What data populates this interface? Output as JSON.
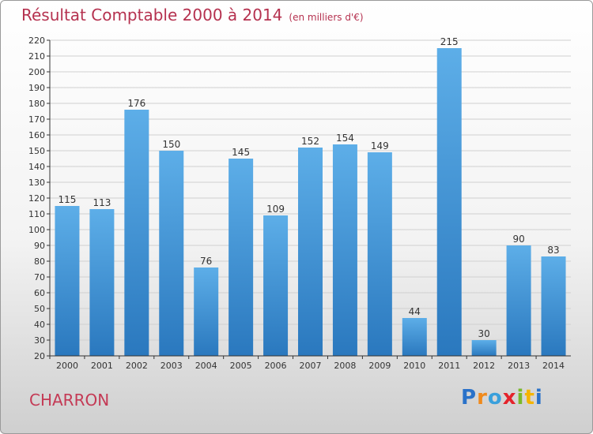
{
  "title": "Résultat Comptable 2000 à 2014",
  "subtitle": "(en milliers d'€)",
  "city": "CHARRON",
  "logo": {
    "letters": [
      "P",
      "r",
      "o",
      "x",
      "i",
      "t",
      "i"
    ],
    "colors": [
      "#2a72c9",
      "#f08a1c",
      "#3aa0dc",
      "#e4232b",
      "#7ab82a",
      "#f5b400",
      "#2a72c9"
    ]
  },
  "colors": {
    "bar_top": "#5daee8",
    "bar_bottom": "#2a78be",
    "grid": "#d0d0d0",
    "axis": "#333333"
  },
  "chart_data": {
    "type": "bar",
    "categories": [
      "2000",
      "2001",
      "2002",
      "2003",
      "2004",
      "2005",
      "2006",
      "2007",
      "2008",
      "2009",
      "2010",
      "2011",
      "2012",
      "2013",
      "2014"
    ],
    "values": [
      115,
      113,
      176,
      150,
      76,
      145,
      109,
      152,
      154,
      149,
      44,
      215,
      30,
      90,
      83
    ],
    "data_labels": [
      "115",
      "113",
      "176",
      "150",
      "76",
      "145",
      "109",
      "152",
      "154",
      "149",
      "44",
      "215",
      "30",
      "90",
      "83"
    ],
    "y_ticks": [
      "20",
      "30",
      "40",
      "50",
      "60",
      "70",
      "80",
      "90",
      "100",
      "110",
      "120",
      "130",
      "140",
      "150",
      "160",
      "170",
      "180",
      "190",
      "200",
      "210",
      "220"
    ],
    "title": "Résultat Comptable 2000 à 2014",
    "xlabel": "",
    "ylabel": "",
    "ylim": [
      20,
      220
    ],
    "grid": true,
    "legend": "none"
  }
}
